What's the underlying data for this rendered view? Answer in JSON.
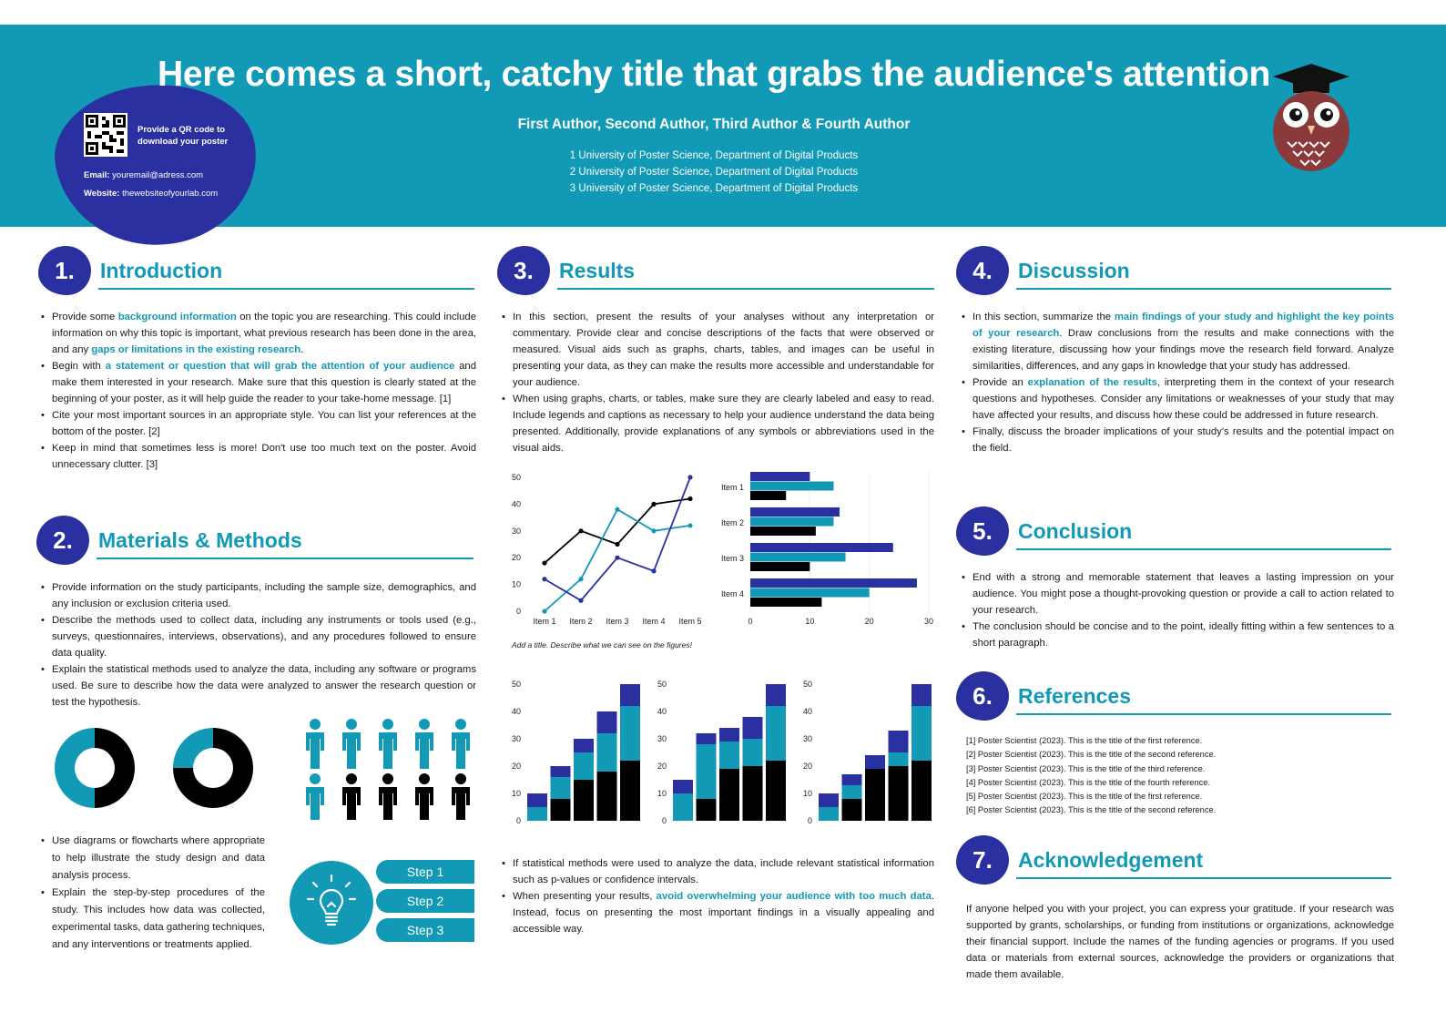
{
  "header": {
    "title": "Here comes a short, catchy title that grabs the audience's attention",
    "authors": "First Author, Second Author, Third Author & Fourth Author",
    "affiliations": [
      "1 University of Poster Science, Department of Digital Products",
      "2 University of Poster Science, Department of Digital Products",
      "3 University of Poster Science, Department of Digital Products"
    ],
    "qr_text": "Provide a QR code to download your poster",
    "email_label": "Email:",
    "email": "youremail@adress.com",
    "website_label": "Website:",
    "website": "thewebsiteofyourlab.com"
  },
  "colors": {
    "teal": "#1199b5",
    "navy": "#2b30a1",
    "black": "#000000",
    "owl": "#8a3a3a"
  },
  "sections": {
    "intro": {
      "num": "1.",
      "title": "Introduction",
      "items": [
        [
          {
            "t": "Provide some "
          },
          {
            "t": "background information",
            "h": true
          },
          {
            "t": " on the topic you are researching. This could include information on why this topic is important, what previous research has been done in the area, and any "
          },
          {
            "t": "gaps or limitations in the existing research",
            "h": true
          },
          {
            "t": "."
          }
        ],
        [
          {
            "t": "Begin with "
          },
          {
            "t": "a statement or question that will grab the attention of your audience",
            "h": true
          },
          {
            "t": " and make them interested in your research. Make sure that this question is clearly stated at the beginning of your poster, as it will help guide the reader to your take-home message. [1]"
          }
        ],
        [
          {
            "t": "Cite your most important sources in an appropriate style. You can list your references at the bottom of the poster. [2]"
          }
        ],
        [
          {
            "t": "Keep in mind that sometimes less is more! Don't use too much text on the poster. Avoid unnecessary clutter. [3]"
          }
        ]
      ]
    },
    "methods": {
      "num": "2.",
      "title": "Materials & Methods",
      "items": [
        [
          {
            "t": "Provide information on the study participants, including the sample size, demographics, and any inclusion or exclusion criteria used."
          }
        ],
        [
          {
            "t": "Describe the methods used to collect data, including any instruments or tools used (e.g., surveys, questionnaires, interviews, observations), and any procedures followed to ensure data quality."
          }
        ],
        [
          {
            "t": "Explain the statistical methods used to analyze the data, including any software or programs used. Be sure to describe how the data were analyzed to answer the research question or test the hypothesis."
          }
        ]
      ],
      "items2": [
        [
          {
            "t": "Use diagrams or flowcharts where appropriate to help illustrate the study design and data analysis process."
          }
        ],
        [
          {
            "t": "Explain the step-by-step procedures of the study. This includes how data was collected, experimental tasks, data gathering techniques, and any interventions or treatments applied."
          }
        ]
      ],
      "steps": [
        "Step 1",
        "Step 2",
        "Step 3"
      ]
    },
    "results": {
      "num": "3.",
      "title": "Results",
      "items": [
        [
          {
            "t": "In this section, present the results of your analyses without any interpretation or commentary. Provide clear and concise descriptions of the facts that were observed or measured. Visual aids such as graphs, charts, tables, and images can be useful in presenting your data, as they can make the results more accessible and understandable for your audience."
          }
        ],
        [
          {
            "t": "When using graphs, charts, or tables, make sure they are clearly labeled and easy to read. Include legends and captions as necessary to help your audience understand the data being presented. Additionally, provide explanations of any symbols or abbreviations used in the visual aids."
          }
        ]
      ],
      "caption": "Add a title. Describe what we can see on the figures!",
      "items2": [
        [
          {
            "t": "If statistical methods were used to analyze the data, include relevant statistical information such as p-values or confidence intervals."
          }
        ],
        [
          {
            "t": "When presenting your results, "
          },
          {
            "t": "avoid overwhelming your audience with too much data",
            "h": true
          },
          {
            "t": ". Instead, focus on presenting the most important findings in a visually appealing and accessible way."
          }
        ]
      ]
    },
    "discussion": {
      "num": "4.",
      "title": "Discussion",
      "items": [
        [
          {
            "t": "In this section, summarize the "
          },
          {
            "t": "main findings of your study and highlight the key points of your research",
            "h": true
          },
          {
            "t": ". Draw conclusions from the results and make connections with the existing literature, discussing how your findings move the research field forward. Analyze similarities, differences, and any gaps in knowledge that your study has addressed."
          }
        ],
        [
          {
            "t": "Provide an "
          },
          {
            "t": "explanation of the results",
            "h": true
          },
          {
            "t": ", interpreting them in the context of your research questions and hypotheses. Consider any limitations or weaknesses of your study that may have affected your results, and discuss how these could be addressed in future research."
          }
        ],
        [
          {
            "t": "Finally, discuss the broader implications of your study's results and the potential impact on the field."
          }
        ]
      ]
    },
    "conclusion": {
      "num": "5.",
      "title": "Conclusion",
      "items": [
        [
          {
            "t": "End with a strong and memorable statement that leaves a lasting impression on your audience. You might pose a thought-provoking question or provide a call to action related to your research."
          }
        ],
        [
          {
            "t": "The conclusion should be concise and to the point, ideally fitting within a few sentences to a short paragraph."
          }
        ]
      ]
    },
    "references": {
      "num": "6.",
      "title": "References",
      "items": [
        "[1] Poster Scientist (2023). This is the title of the first reference.",
        "[2] Poster Scientist (2023). This is the title of the second reference.",
        "[3] Poster Scientist (2023). This is the title of the third reference.",
        "[4] Poster Scientist (2023). This is the title of the fourth reference.",
        "[5] Poster Scientist (2023). This is the title of the first reference.",
        "[6] Poster Scientist (2023). This is the title of the second reference."
      ]
    },
    "acknowledgement": {
      "num": "7.",
      "title": "Acknowledgement",
      "text": "If anyone helped you with your project, you can express your gratitude. If your research was supported by grants, scholarships, or funding from institutions or organizations, acknowledge their financial support. Include the names of the funding agencies or programs. If you used data or materials from external sources, acknowledge the providers or organizations that made them available."
    }
  },
  "chart_data": [
    {
      "type": "pie",
      "values": [
        50,
        50
      ],
      "colors": [
        "#000000",
        "#1199b5"
      ]
    },
    {
      "type": "pie",
      "values": [
        75,
        25
      ],
      "colors": [
        "#000000",
        "#1199b5"
      ]
    },
    {
      "type": "pictogram",
      "total": 10,
      "highlighted": 6,
      "colors": [
        "#1199b5",
        "#000000"
      ]
    },
    {
      "type": "line",
      "categories": [
        "Item 1",
        "Item 2",
        "Item 3",
        "Item 4",
        "Item 5"
      ],
      "ylim": [
        0,
        50
      ],
      "yticks": [
        0,
        10,
        20,
        30,
        40,
        50
      ],
      "series": [
        {
          "color": "#000000",
          "values": [
            18,
            30,
            25,
            40,
            42
          ]
        },
        {
          "color": "#1199b5",
          "values": [
            0,
            12,
            38,
            30,
            32
          ]
        },
        {
          "color": "#2b30a1",
          "values": [
            12,
            4,
            20,
            15,
            50
          ]
        }
      ]
    },
    {
      "type": "bar",
      "orientation": "horizontal",
      "categories": [
        "Item 1",
        "Item 2",
        "Item 3",
        "Item 4"
      ],
      "xlim": [
        0,
        30
      ],
      "xticks": [
        0,
        10,
        20,
        30
      ],
      "series": [
        {
          "color": "#2b30a1",
          "values": [
            10,
            15,
            24,
            28
          ]
        },
        {
          "color": "#1199b5",
          "values": [
            14,
            14,
            16,
            20
          ]
        },
        {
          "color": "#000000",
          "values": [
            6,
            11,
            10,
            12
          ]
        }
      ]
    },
    {
      "type": "bar",
      "stacked": true,
      "ylim": [
        0,
        50
      ],
      "yticks": [
        0,
        10,
        20,
        30,
        40,
        50
      ],
      "series": [
        {
          "color": "#000000",
          "values": [
            0,
            8,
            15,
            18,
            22
          ]
        },
        {
          "color": "#1199b5",
          "values": [
            5,
            8,
            10,
            14,
            20
          ]
        },
        {
          "color": "#2b30a1",
          "values": [
            5,
            4,
            5,
            8,
            8
          ]
        }
      ]
    },
    {
      "type": "bar",
      "stacked": true,
      "ylim": [
        0,
        50
      ],
      "yticks": [
        0,
        10,
        20,
        30,
        40,
        50
      ],
      "series": [
        {
          "color": "#000000",
          "values": [
            0,
            8,
            19,
            20,
            22
          ]
        },
        {
          "color": "#1199b5",
          "values": [
            10,
            20,
            10,
            10,
            20
          ]
        },
        {
          "color": "#2b30a1",
          "values": [
            5,
            4,
            5,
            8,
            8
          ]
        }
      ]
    },
    {
      "type": "bar",
      "stacked": true,
      "ylim": [
        0,
        50
      ],
      "yticks": [
        0,
        10,
        20,
        30,
        40,
        50
      ],
      "series": [
        {
          "color": "#000000",
          "values": [
            0,
            8,
            19,
            20,
            22
          ]
        },
        {
          "color": "#1199b5",
          "values": [
            5,
            5,
            0,
            5,
            20
          ]
        },
        {
          "color": "#2b30a1",
          "values": [
            5,
            4,
            5,
            8,
            8
          ]
        }
      ]
    }
  ]
}
